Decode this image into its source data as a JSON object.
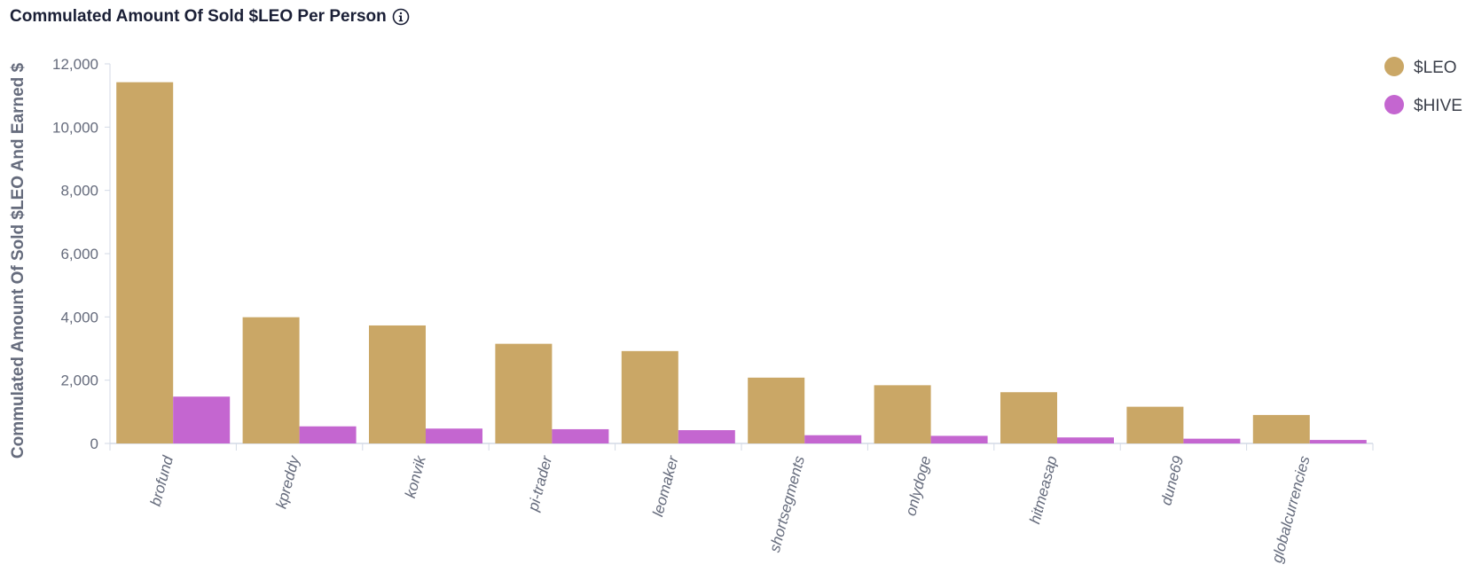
{
  "header": {
    "title": "Commulated Amount Of Sold $LEO Per Person",
    "info_icon": "info-circle-icon"
  },
  "chart_data": {
    "type": "bar",
    "title": "Commulated Amount Of Sold $LEO Per Person",
    "xlabel": "",
    "ylabel": "Commulated Amount Of Sold $LEO And Earned $",
    "ylim": [
      0,
      12000
    ],
    "yticks": [
      0,
      2000,
      4000,
      6000,
      8000,
      10000,
      12000
    ],
    "ytick_labels": [
      "0",
      "2,000",
      "4,000",
      "6,000",
      "8,000",
      "10,000",
      "12,000"
    ],
    "categories": [
      "brofund",
      "kpreddy",
      "konvik",
      "pi-trader",
      "leomaker",
      "shortsegments",
      "onlydoge",
      "hitmeasap",
      "dune69",
      "globalcurrencies"
    ],
    "series": [
      {
        "name": "$LEO",
        "color": "#caa766",
        "values": [
          11420,
          3990,
          3730,
          3150,
          2920,
          2080,
          1840,
          1620,
          1160,
          900
        ]
      },
      {
        "name": "$HIVE",
        "color": "#c466d0",
        "values": [
          1480,
          540,
          470,
          450,
          420,
          260,
          240,
          190,
          150,
          110
        ]
      }
    ],
    "grid": false,
    "legend_position": "top-right"
  }
}
